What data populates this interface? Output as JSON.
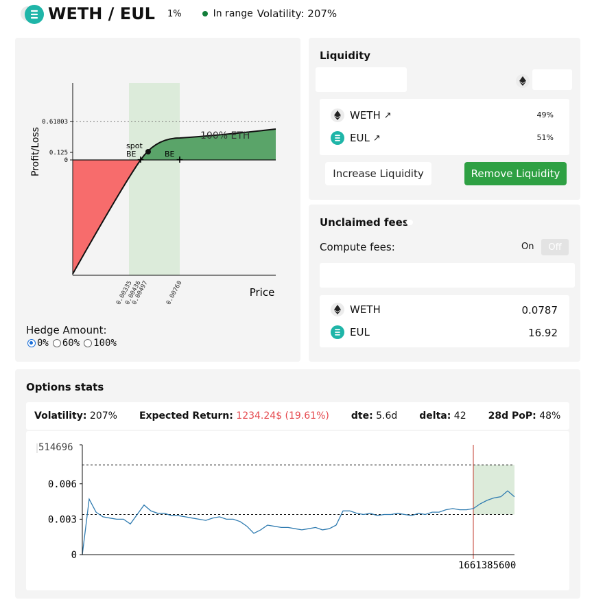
{
  "header": {
    "pair": "WETH / EUL",
    "fee_tier": "1%",
    "range_status": "In range",
    "volatility_label": "Volatility: 207%"
  },
  "pnl_chart": {
    "ylabel": "Profit/Loss",
    "xlabel": "Price",
    "y_ticks": [
      "0.61803",
      "0.125",
      "0"
    ],
    "x_ticks": [
      "0.00335",
      "0.00436",
      "0.00497",
      "0.00760"
    ],
    "spot_label": "spot",
    "be_label": "BE",
    "position_label": "100% ETH"
  },
  "hedge": {
    "label": "Hedge Amount:",
    "options": [
      "0%",
      "60%",
      "100%"
    ],
    "selected": "0%"
  },
  "liquidity": {
    "title": "Liquidity",
    "tokens": [
      {
        "symbol": "WETH",
        "pct": "49%"
      },
      {
        "symbol": "EUL",
        "pct": "51%"
      }
    ],
    "increase_label": "Increase Liquidity",
    "remove_label": "Remove Liquidity"
  },
  "fees": {
    "title": "Unclaimed fees",
    "compute_label": "Compute fees:",
    "toggle_on": "On",
    "toggle_off": "Off",
    "tokens": [
      {
        "symbol": "WETH",
        "amount": "0.0787"
      },
      {
        "symbol": "EUL",
        "amount": "16.92"
      }
    ]
  },
  "stats": {
    "title": "Options stats",
    "volatility_label": "Volatility:",
    "volatility_value": "207%",
    "expected_return_label": "Expected Return:",
    "expected_return_value": "1234.24$ (19.61%)",
    "dte_label": "dte:",
    "dte_value": "5.6d",
    "delta_label": "delta:",
    "delta_value": "42",
    "pop_label": "28d PoP:",
    "pop_value": "48%"
  },
  "colors": {
    "green": "#2ea043",
    "red": "#e5484d",
    "teal": "#1fb5a8",
    "line": "#2f7bb0"
  },
  "chart_data": {
    "type": "line",
    "y_ticks": [
      "0.006",
      "0.003",
      "0"
    ],
    "y_top_label": "514696",
    "x_tick_label": "1661385600",
    "ylim": [
      0,
      0.0093
    ],
    "upper_band": 0.0076,
    "lower_band": 0.0034,
    "series": [
      {
        "values": [
          0.0,
          0.0047,
          0.0036,
          0.0032,
          0.0031,
          0.003,
          0.003,
          0.0026,
          0.0034,
          0.0042,
          0.0037,
          0.0035,
          0.0035,
          0.0033,
          0.0033,
          0.0032,
          0.0031,
          0.003,
          0.0029,
          0.0031,
          0.0032,
          0.003,
          0.003,
          0.0028,
          0.0024,
          0.0018,
          0.0021,
          0.0025,
          0.0024,
          0.0023,
          0.0023,
          0.0022,
          0.0021,
          0.0022,
          0.0023,
          0.0021,
          0.0022,
          0.0025,
          0.0037,
          0.0037,
          0.0035,
          0.0034,
          0.0035,
          0.0033,
          0.0034,
          0.0034,
          0.0035,
          0.0034,
          0.0033,
          0.0035,
          0.0034,
          0.0036,
          0.0036,
          0.0038,
          0.0039,
          0.0038,
          0.0038,
          0.0039,
          0.0043,
          0.0046,
          0.0048,
          0.0049,
          0.0054,
          0.0049
        ]
      }
    ]
  }
}
